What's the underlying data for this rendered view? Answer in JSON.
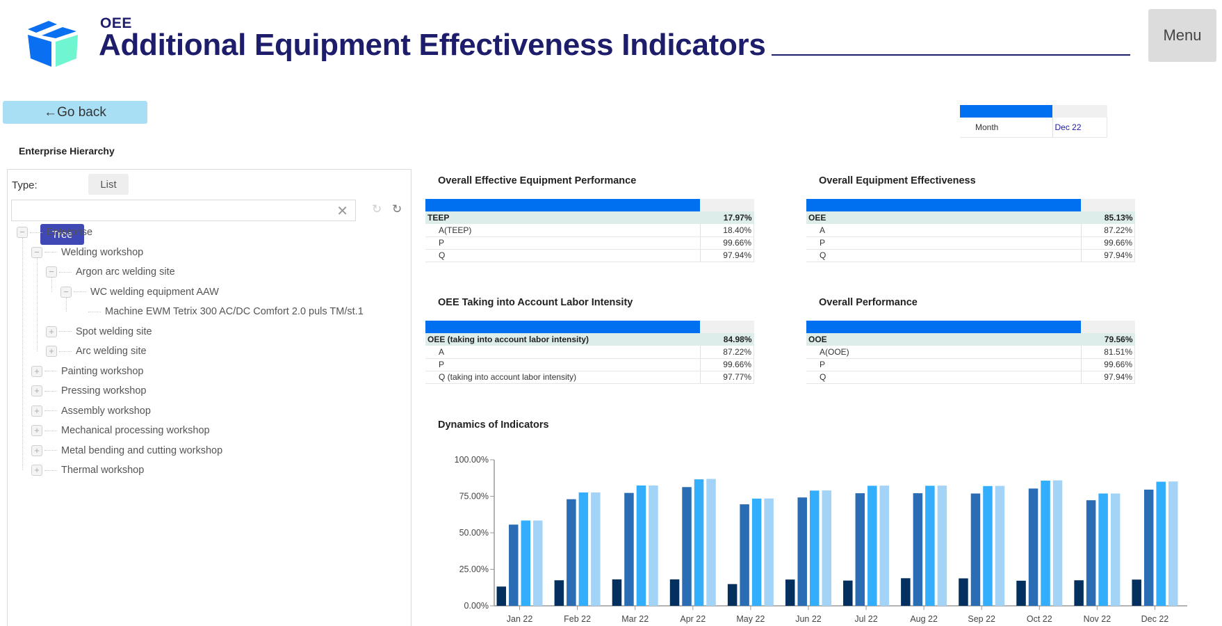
{
  "header": {
    "brand_small": "OEE",
    "title": "Additional Equipment Effectiveness Indicators",
    "menu_label": "Menu",
    "logo_icon": "box-icon"
  },
  "go_back_label": "←Go back",
  "filter": {
    "month_label": "Month",
    "month_value": "Dec 22"
  },
  "hierarchy": {
    "title": "Enterprise Hierarchy",
    "type_label": "Type:",
    "tree_label": "Tree",
    "list_label": "List",
    "search_value": "",
    "search_placeholder": "",
    "clear_icon": "✕",
    "refresh_icon": "↻",
    "nodes": [
      {
        "label": "Enterprise",
        "level": 0,
        "state": "expanded"
      },
      {
        "label": "Welding workshop",
        "level": 1,
        "state": "expanded"
      },
      {
        "label": "Argon arc welding site",
        "level": 2,
        "state": "expanded"
      },
      {
        "label": "WC welding equipment AAW",
        "level": 3,
        "state": "expanded"
      },
      {
        "label": "Machine EWM Tetrix 300 AC/DC Comfort 2.0 puls TM/st.1",
        "level": 4,
        "state": "leaf"
      },
      {
        "label": "Spot welding site",
        "level": 2,
        "state": "collapsed"
      },
      {
        "label": "Arc welding site",
        "level": 2,
        "state": "collapsed"
      },
      {
        "label": "Painting workshop",
        "level": 1,
        "state": "collapsed"
      },
      {
        "label": "Pressing workshop",
        "level": 1,
        "state": "collapsed"
      },
      {
        "label": "Assembly workshop",
        "level": 1,
        "state": "collapsed"
      },
      {
        "label": "Mechanical processing workshop",
        "level": 1,
        "state": "collapsed"
      },
      {
        "label": "Metal bending and cutting workshop",
        "level": 1,
        "state": "collapsed"
      },
      {
        "label": "Thermal workshop",
        "level": 1,
        "state": "collapsed"
      }
    ]
  },
  "kpis": [
    {
      "title": "Overall Effective Equipment Performance",
      "rows": [
        {
          "name": "TEEP",
          "value": "17.97%",
          "main": true
        },
        {
          "name": "A(TEEP)",
          "value": "18.40%"
        },
        {
          "name": "P",
          "value": "99.66%"
        },
        {
          "name": "Q",
          "value": "97.94%"
        }
      ]
    },
    {
      "title": "Overall Equipment Effectiveness",
      "rows": [
        {
          "name": "OEE",
          "value": "85.13%",
          "main": true
        },
        {
          "name": "A",
          "value": "87.22%"
        },
        {
          "name": "P",
          "value": "99.66%"
        },
        {
          "name": "Q",
          "value": "97.94%"
        }
      ]
    },
    {
      "title": "OEE Taking into Account Labor Intensity",
      "rows": [
        {
          "name": "OEE (taking into account labor intensity)",
          "value": "84.98%",
          "main": true
        },
        {
          "name": "A",
          "value": "87.22%"
        },
        {
          "name": "P",
          "value": "99.66%"
        },
        {
          "name": "Q (taking into account labor intensity)",
          "value": "97.77%"
        }
      ]
    },
    {
      "title": "Overall Performance",
      "rows": [
        {
          "name": "OOE",
          "value": "79.56%",
          "main": true
        },
        {
          "name": "A(OOE)",
          "value": "81.51%"
        },
        {
          "name": "P",
          "value": "99.66%"
        },
        {
          "name": "Q",
          "value": "97.94%"
        }
      ]
    }
  ],
  "colors": {
    "accent_blue": "#0070f0",
    "brand_navy": "#1d1d6b",
    "tree_button": "#3f48b5",
    "go_back_bg": "#a9dff5",
    "kpi_main_row_bg": "#dcedea"
  },
  "chart_data": {
    "type": "bar",
    "title": "Dynamics of Indicators",
    "xlabel": "",
    "ylabel": "",
    "ylim": [
      0,
      100
    ],
    "yticks": [
      "0.00%",
      "25.00%",
      "50.00%",
      "75.00%",
      "100.00%"
    ],
    "ytick_values": [
      0,
      25,
      50,
      75,
      100
    ],
    "grid": false,
    "legend": "none",
    "categories": [
      "Jan 22",
      "Feb 22",
      "Mar 22",
      "Apr 22",
      "May 22",
      "Jun 22",
      "Jul 22",
      "Aug 22",
      "Sep 22",
      "Oct 22",
      "Nov 22",
      "Dec 22"
    ],
    "series": [
      {
        "name": "TEEP",
        "color": "#03305f",
        "values": [
          13.2,
          17.5,
          18.1,
          18.1,
          14.9,
          18.0,
          17.3,
          18.9,
          18.8,
          17.2,
          17.5,
          17.97
        ]
      },
      {
        "name": "OOE",
        "color": "#2a6db5",
        "values": [
          55.6,
          73.0,
          77.3,
          81.3,
          69.5,
          74.2,
          77.1,
          77.1,
          76.9,
          80.3,
          72.3,
          79.56
        ]
      },
      {
        "name": "OEE (taking into account labor intensity)",
        "color": "#33aefc",
        "values": [
          58.4,
          77.6,
          82.4,
          86.6,
          73.4,
          78.9,
          82.2,
          82.2,
          82.0,
          85.7,
          76.9,
          84.98
        ]
      },
      {
        "name": "OEE",
        "color": "#a3d3f7",
        "values": [
          58.4,
          77.6,
          82.4,
          86.9,
          73.5,
          79.0,
          82.3,
          82.3,
          82.1,
          85.9,
          76.9,
          85.13
        ]
      }
    ]
  }
}
